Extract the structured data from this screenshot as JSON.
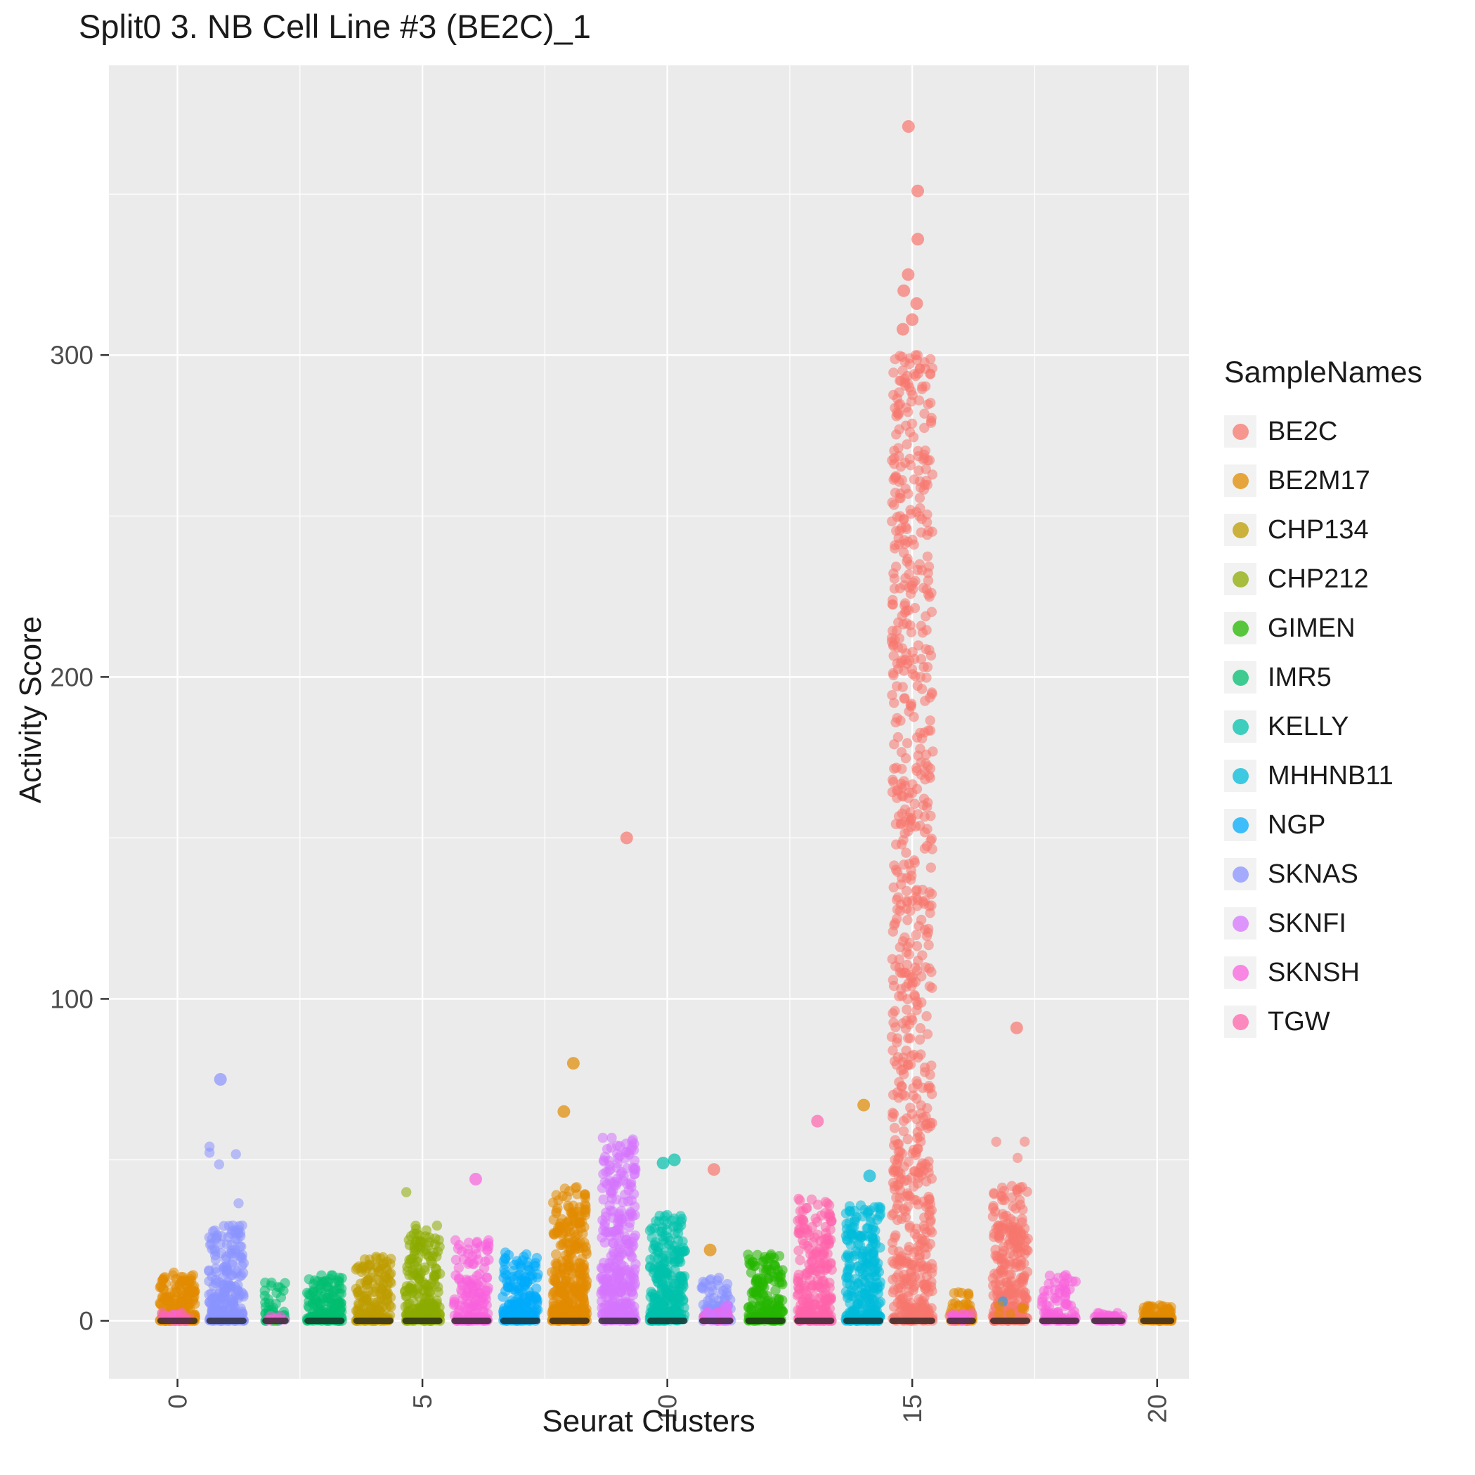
{
  "chart_data": {
    "type": "scatter",
    "title": "Split0 3. NB Cell Line #3 (BE2C)_1",
    "xlabel": "Seurat Clusters",
    "ylabel": "Activity Score",
    "legend_title": "SampleNames",
    "legend_position": "right",
    "grid": true,
    "xlim": [
      -1.4,
      20.65
    ],
    "ylim": [
      -18,
      390
    ],
    "x_ticks": [
      0,
      5,
      10,
      15,
      20
    ],
    "x_tick_labels": [
      "0",
      "5",
      "10",
      "15",
      "20"
    ],
    "x_minor": [
      2.5,
      7.5,
      12.5,
      17.5
    ],
    "y_ticks": [
      0,
      100,
      200,
      300
    ],
    "y_tick_labels": [
      "0",
      "100",
      "200",
      "300"
    ],
    "y_minor": [
      50,
      150,
      250,
      350
    ],
    "panel_bg": "#EBEBEB",
    "grid_color": "#FFFFFF",
    "tick_color": "#333333",
    "tick_label_color": "#4D4D4D",
    "title_color": "#1A1A1A",
    "point_alpha": 0.55,
    "samples": [
      {
        "name": "BE2C",
        "color": "#F8766D"
      },
      {
        "name": "BE2M17",
        "color": "#E18A00"
      },
      {
        "name": "CHP134",
        "color": "#BE9C00"
      },
      {
        "name": "CHP212",
        "color": "#8CAB00"
      },
      {
        "name": "GIMEN",
        "color": "#24B700"
      },
      {
        "name": "IMR5",
        "color": "#00BE70"
      },
      {
        "name": "KELLY",
        "color": "#00C1AB"
      },
      {
        "name": "MHHNB11",
        "color": "#00BBDA"
      },
      {
        "name": "NGP",
        "color": "#00ACFC"
      },
      {
        "name": "SKNAS",
        "color": "#8B93FF"
      },
      {
        "name": "SKNFI",
        "color": "#D575FE"
      },
      {
        "name": "SKNSH",
        "color": "#F962DD"
      },
      {
        "name": "TGW",
        "color": "#FF65AC"
      }
    ],
    "clusters": [
      {
        "x": 0,
        "sample": "BE2M17",
        "parts": [
          {
            "n": 200,
            "ymax": 15,
            "power": 2.6
          }
        ],
        "minors": [
          {
            "sample": "SKNSH",
            "n": 15,
            "ymax": 2.5,
            "power": 1.5
          },
          {
            "sample": "TGW",
            "n": 8,
            "ymax": 2,
            "power": 1.5
          }
        ]
      },
      {
        "x": 1,
        "sample": "SKNAS",
        "parts": [
          {
            "n": 240,
            "ymax": 30,
            "power": 2.3
          },
          {
            "n": 12,
            "ymax": 56,
            "power": 0.9
          }
        ],
        "outliers": [
          {
            "sample": "SKNAS",
            "y": 75
          }
        ]
      },
      {
        "x": 2,
        "sample": "IMR5",
        "jw": 0.22,
        "parts": [
          {
            "n": 60,
            "ymax": 12,
            "power": 2.4
          }
        ],
        "minors": [
          {
            "sample": "CHP134",
            "n": 2,
            "ymax": 3,
            "power": 1
          },
          {
            "sample": "SKNSH",
            "n": 8,
            "ymax": 1.5,
            "power": 1
          }
        ]
      },
      {
        "x": 3,
        "sample": "IMR5",
        "parts": [
          {
            "n": 160,
            "ymax": 15,
            "power": 2.4
          }
        ]
      },
      {
        "x": 4,
        "sample": "CHP134",
        "parts": [
          {
            "n": 180,
            "ymax": 20,
            "power": 2.4
          }
        ]
      },
      {
        "x": 5,
        "sample": "CHP212",
        "parts": [
          {
            "n": 210,
            "ymax": 30,
            "power": 2.2
          },
          {
            "n": 5,
            "ymax": 45,
            "power": 0.9
          }
        ]
      },
      {
        "x": 6,
        "sample": "SKNSH",
        "parts": [
          {
            "n": 150,
            "ymax": 25,
            "power": 2.4
          }
        ],
        "outliers": [
          {
            "sample": "SKNSH",
            "y": 44
          }
        ]
      },
      {
        "x": 7,
        "sample": "NGP",
        "parts": [
          {
            "n": 180,
            "ymax": 22,
            "power": 1.8
          }
        ]
      },
      {
        "x": 8,
        "sample": "BE2M17",
        "parts": [
          {
            "n": 340,
            "ymax": 42,
            "power": 2.2
          }
        ],
        "outliers": [
          {
            "sample": "BE2M17",
            "y": 80
          },
          {
            "sample": "BE2M17",
            "y": 65
          }
        ]
      },
      {
        "x": 9,
        "sample": "SKNFI",
        "parts": [
          {
            "n": 330,
            "ymax": 58,
            "power": 2.0
          }
        ],
        "outliers": [
          {
            "sample": "BE2C",
            "y": 150
          }
        ]
      },
      {
        "x": 10,
        "sample": "KELLY",
        "parts": [
          {
            "n": 260,
            "ymax": 33,
            "power": 1.9
          }
        ],
        "outliers": [
          {
            "sample": "KELLY",
            "y": 50
          },
          {
            "sample": "KELLY",
            "y": 49
          }
        ]
      },
      {
        "x": 11,
        "sample": "SKNAS",
        "jw": 0.3,
        "parts": [
          {
            "n": 80,
            "ymax": 14,
            "power": 2.2
          }
        ],
        "minors": [
          {
            "sample": "SKNSH",
            "n": 30,
            "ymax": 3,
            "power": 1.5
          },
          {
            "sample": "SKNFI",
            "n": 15,
            "ymax": 5,
            "power": 2
          }
        ],
        "outliers": [
          {
            "sample": "BE2C",
            "y": 47
          },
          {
            "sample": "BE2M17",
            "y": 22
          }
        ]
      },
      {
        "x": 12,
        "sample": "GIMEN",
        "parts": [
          {
            "n": 160,
            "ymax": 21,
            "power": 2.2
          }
        ]
      },
      {
        "x": 13,
        "sample": "TGW",
        "parts": [
          {
            "n": 250,
            "ymax": 38,
            "power": 2.2
          },
          {
            "n": 5,
            "ymax": 55,
            "power": 0.9
          }
        ],
        "outliers": [
          {
            "sample": "TGW",
            "y": 62
          }
        ]
      },
      {
        "x": 14,
        "sample": "MHHNB11",
        "parts": [
          {
            "n": 260,
            "ymax": 36,
            "power": 2.0
          }
        ],
        "outliers": [
          {
            "sample": "MHHNB11",
            "y": 45
          },
          {
            "sample": "BE2M17",
            "y": 67
          }
        ]
      },
      {
        "x": 15,
        "sample": "BE2C",
        "jw": 0.42,
        "parts": [
          {
            "n": 620,
            "ymax": 300,
            "power": 1.05
          },
          {
            "n": 160,
            "ymax": 55,
            "power": 2.5
          }
        ],
        "outliers": [
          {
            "sample": "BE2C",
            "y": 371
          },
          {
            "sample": "BE2C",
            "y": 351
          },
          {
            "sample": "BE2C",
            "y": 336
          },
          {
            "sample": "BE2C",
            "y": 325
          },
          {
            "sample": "BE2C",
            "y": 320
          },
          {
            "sample": "BE2C",
            "y": 316
          },
          {
            "sample": "BE2C",
            "y": 311
          },
          {
            "sample": "BE2C",
            "y": 308
          }
        ]
      },
      {
        "x": 16,
        "sample": "BE2M17",
        "jw": 0.25,
        "parts": [
          {
            "n": 60,
            "ymax": 10,
            "power": 2.2
          }
        ],
        "minors": [
          {
            "sample": "SKNSH",
            "n": 20,
            "ymax": 2.5,
            "power": 1.5
          }
        ]
      },
      {
        "x": 17,
        "sample": "BE2C",
        "parts": [
          {
            "n": 260,
            "ymax": 42,
            "power": 1.8
          },
          {
            "n": 8,
            "ymax": 58,
            "power": 0.9
          }
        ],
        "minors": [
          {
            "sample": "NGP",
            "n": 1,
            "ymax": 8,
            "power": 1
          },
          {
            "sample": "BE2M17",
            "n": 5,
            "ymax": 12,
            "power": 1.5
          }
        ],
        "outliers": [
          {
            "sample": "BE2C",
            "y": 91
          }
        ]
      },
      {
        "x": 18,
        "sample": "SKNSH",
        "parts": [
          {
            "n": 80,
            "ymax": 15,
            "power": 2.2
          }
        ]
      },
      {
        "x": 19,
        "sample": "SKNSH",
        "jw": 0.3,
        "parts": [
          {
            "n": 45,
            "ymax": 2.5,
            "power": 1.5
          }
        ]
      },
      {
        "x": 20,
        "sample": "BE2M17",
        "jw": 0.3,
        "parts": [
          {
            "n": 80,
            "ymax": 5,
            "power": 2
          }
        ]
      }
    ]
  }
}
